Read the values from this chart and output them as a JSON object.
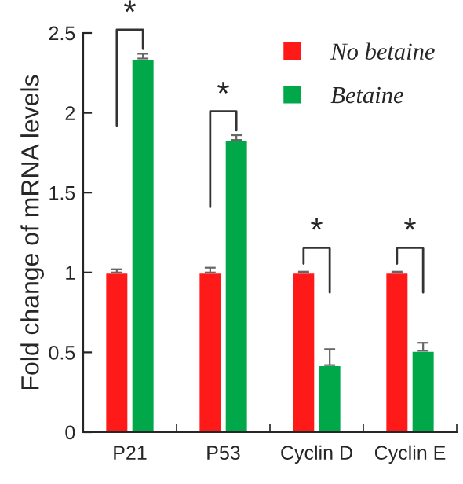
{
  "chart_data": {
    "type": "bar",
    "ylabel": "Fold change of mRNA levels",
    "categories": [
      "P21",
      "P53",
      "Cyclin D",
      "Cyclin E"
    ],
    "series": [
      {
        "name": "No betaine",
        "color": "#ff1a1a",
        "values": [
          1.0,
          1.0,
          1.0,
          1.0
        ],
        "errors": [
          0.02,
          0.03,
          0.005,
          0.005
        ]
      },
      {
        "name": "Betaine",
        "color": "#00a84a",
        "values": [
          2.34,
          1.83,
          0.42,
          0.51
        ],
        "errors": [
          0.03,
          0.03,
          0.1,
          0.05
        ]
      }
    ],
    "ylim": [
      0,
      2.5
    ],
    "yticks": [
      0,
      0.5,
      1,
      1.5,
      2,
      2.5
    ],
    "grid": false,
    "legend": "top right",
    "annotations": [
      "*",
      "*",
      "*",
      "*"
    ]
  }
}
